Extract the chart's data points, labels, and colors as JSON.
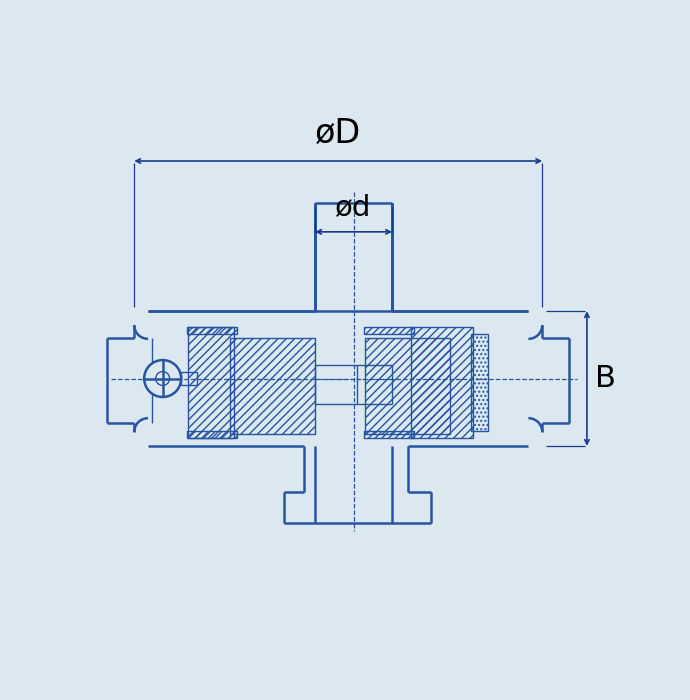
{
  "bg_color": "#dce8f0",
  "line_color": "#2855a0",
  "dim_color": "#1a3a8a",
  "text_color": "#000000",
  "dim_D_label": "øD",
  "dim_d_label": "ød",
  "dim_B_label": "B",
  "lw_main": 1.8,
  "lw_thin": 1.0,
  "lw_dim": 1.2
}
